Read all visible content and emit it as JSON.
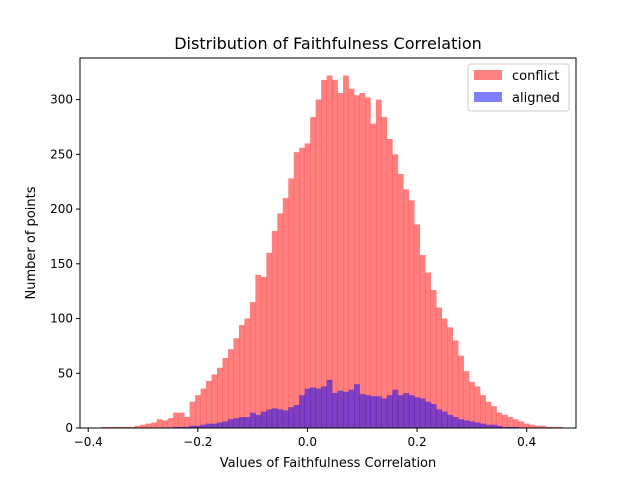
{
  "chart_data": {
    "type": "bar",
    "title": "Distribution of Faithfulness Correlation",
    "xlabel": "Values of Faithfulness Correlation",
    "ylabel": "Number of points",
    "xlim": [
      -0.415,
      0.49
    ],
    "ylim": [
      0,
      338
    ],
    "xticks": [
      -0.4,
      -0.2,
      0.0,
      0.2,
      0.4
    ],
    "xtick_labels": [
      "−0.4",
      "−0.2",
      "0.0",
      "0.2",
      "0.4"
    ],
    "yticks": [
      0,
      50,
      100,
      150,
      200,
      250,
      300
    ],
    "ytick_labels": [
      "0",
      "50",
      "100",
      "150",
      "200",
      "250",
      "300"
    ],
    "grid": false,
    "legend_position": "top-right",
    "bin_start": -0.375,
    "bin_width": 0.01,
    "series": [
      {
        "name": "conflict",
        "color": "#ff0000",
        "alpha": 0.5,
        "values": [
          1,
          1,
          1,
          1,
          1,
          1,
          2,
          3,
          4,
          5,
          8,
          7,
          9,
          14,
          14,
          10,
          24,
          30,
          36,
          43,
          49,
          55,
          64,
          72,
          82,
          94,
          100,
          115,
          140,
          138,
          160,
          180,
          196,
          210,
          228,
          252,
          256,
          260,
          284,
          300,
          318,
          322,
          318,
          306,
          322,
          310,
          304,
          306,
          302,
          278,
          300,
          284,
          264,
          250,
          232,
          218,
          208,
          186,
          158,
          142,
          126,
          110,
          100,
          92,
          80,
          66,
          52,
          42,
          38,
          30,
          24,
          20,
          14,
          12,
          10,
          8,
          6,
          4,
          3,
          2,
          2,
          1,
          1,
          1
        ]
      },
      {
        "name": "aligned",
        "color": "#0000ff",
        "alpha": 0.5,
        "values": [
          0,
          0,
          0,
          0,
          0,
          0,
          0,
          0,
          0,
          0,
          0,
          0,
          0,
          1,
          1,
          1,
          2,
          2,
          3,
          4,
          4,
          5,
          6,
          8,
          9,
          10,
          10,
          14,
          12,
          15,
          17,
          18,
          17,
          16,
          19,
          21,
          30,
          36,
          37,
          36,
          38,
          44,
          32,
          34,
          33,
          35,
          40,
          31,
          30,
          29,
          29,
          27,
          30,
          35,
          30,
          32,
          30,
          28,
          27,
          24,
          22,
          17,
          15,
          12,
          10,
          8,
          7,
          6,
          5,
          4,
          3,
          3,
          2,
          1,
          1,
          1,
          0,
          0,
          0,
          0,
          0,
          0,
          0,
          0
        ]
      }
    ]
  }
}
